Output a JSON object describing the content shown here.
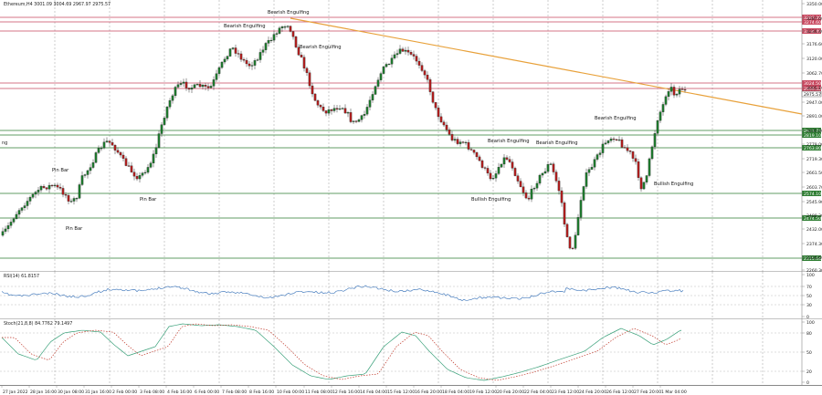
{
  "chart_header": {
    "symbol_line": "Ethereum,H4 3001.09 3004.69 2967.97 2975.57"
  },
  "colors": {
    "bull": "#1f7a2e",
    "bear": "#b21e1e",
    "trend": "#e8a13a",
    "res": "#c8485f",
    "sup": "#2e7d32",
    "rsi": "#4a7fbf",
    "stochMain": "#3aa17a",
    "stochSignal": "#c0392b"
  },
  "price_axis": [
    "3350.00",
    "3287.00",
    "3234.40",
    "3176.60",
    "3120.00",
    "3062.70",
    "3005.10",
    "2947.00",
    "2891.00",
    "2835.00",
    "2779.00",
    "2719.30",
    "2661.50",
    "2603.70",
    "2545.90",
    "2488.20",
    "2432.00",
    "2374.30",
    "2316.60",
    "2260.30"
  ],
  "levels": [
    {
      "label": "3287.00",
      "kind": "res"
    },
    {
      "label": "3274.60",
      "kind": "res"
    },
    {
      "label": "3234.40",
      "kind": "res"
    },
    {
      "label": "3024.50",
      "kind": "res"
    },
    {
      "label": "2999.52",
      "kind": "res"
    },
    {
      "label": "2975.57",
      "kind": "price"
    },
    {
      "label": "2831.76",
      "kind": "sup"
    },
    {
      "label": "2819.10",
      "kind": "sup"
    },
    {
      "label": "2763.80",
      "kind": "sup"
    },
    {
      "label": "2574.10",
      "kind": "sup"
    },
    {
      "label": "2474.50",
      "kind": "sup"
    },
    {
      "label": "2315.64",
      "kind": "sup"
    }
  ],
  "patterns": [
    "Bearish Engulfing",
    "Bearish Engulfing",
    "Bearish Engulfing",
    "Bearish Engulfing",
    "Bearish Engulfing",
    "Bearish Engulfing",
    "Pin Bar",
    "Pin Bar",
    "Pin Bar",
    "Bullish Engulfing",
    "Bullish Engulfing"
  ],
  "time_axis": [
    "27 Jan 2022",
    "28 Jan 16:00",
    "30 Jan 08:00",
    "31 Jan 16:00",
    "2 Feb 00:00",
    "3 Feb 08:00",
    "4 Feb 16:00",
    "6 Feb 00:00",
    "7 Feb 08:00",
    "8 Feb 16:00",
    "10 Feb 00:00",
    "11 Feb 08:00",
    "12 Feb 16:00",
    "14 Feb 04:00",
    "15 Feb 12:00",
    "16 Feb 20:00",
    "18 Feb 04:00",
    "19 Feb 12:00",
    "20 Feb 20:00",
    "22 Feb 04:00",
    "23 Feb 12:00",
    "24 Feb 20:00",
    "26 Feb 12:00",
    "27 Feb 20:00",
    "1 Mar 04:00"
  ],
  "rsi": {
    "header": "RSI(14) 61.8157",
    "axis": [
      "100",
      "70",
      "50",
      "30",
      "0"
    ]
  },
  "stoch": {
    "header": "Stoch(21,8,8) 84.7762 79.1497",
    "axis": [
      "100",
      "80",
      "50",
      "20",
      "0"
    ]
  },
  "chart_data": {
    "type": "candlestick",
    "x": "time",
    "ylim": [
      2260.3,
      3350.0
    ],
    "series": []
  }
}
